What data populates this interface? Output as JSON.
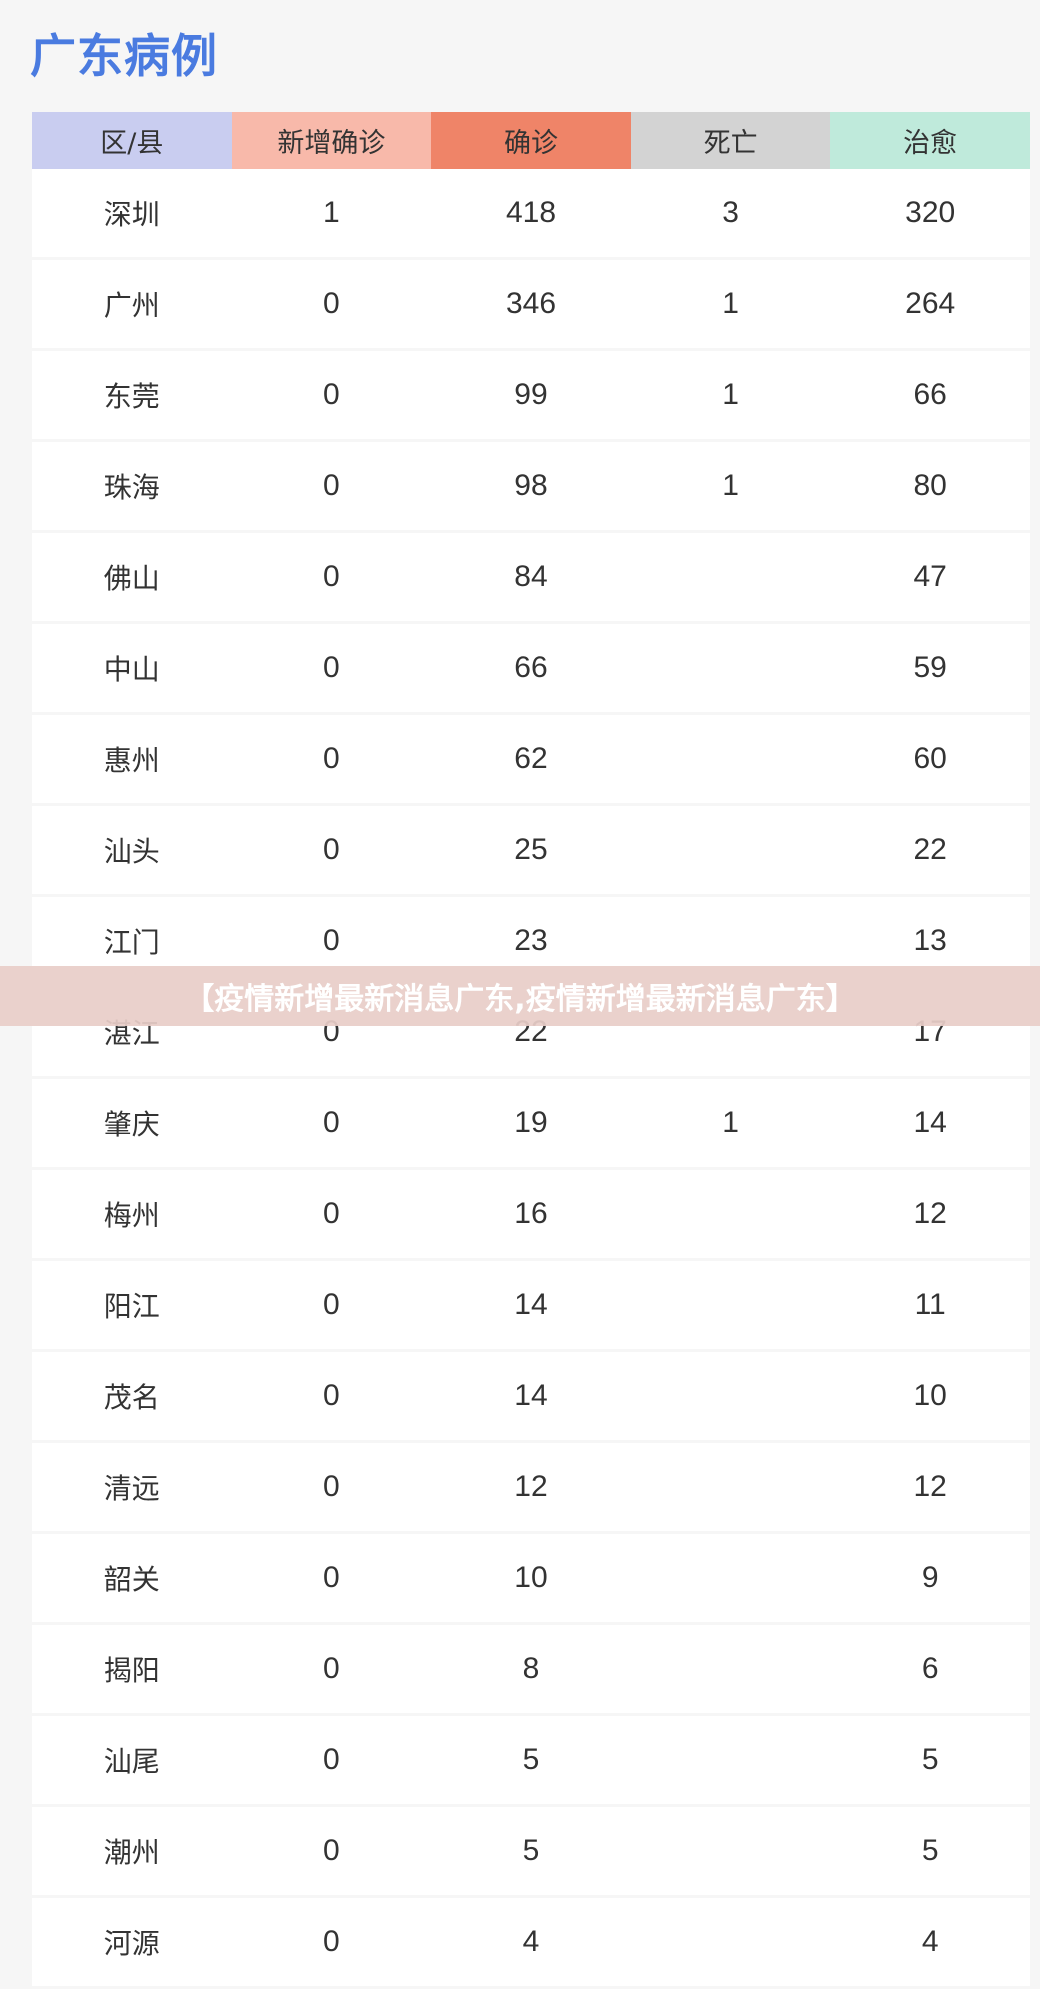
{
  "title": "广东病例",
  "colors": {
    "title": "#4a7be0",
    "col_region": "#c9cdf0",
    "col_new": "#f8b9aa",
    "col_confirmed": "#ef8468",
    "col_deaths": "#d3d3d3",
    "col_cured": "#bfeadb"
  },
  "columns": [
    "区/县",
    "新增确诊",
    "确诊",
    "死亡",
    "治愈"
  ],
  "rows": [
    [
      "深圳",
      "1",
      "418",
      "3",
      "320"
    ],
    [
      "广州",
      "0",
      "346",
      "1",
      "264"
    ],
    [
      "东莞",
      "0",
      "99",
      "1",
      "66"
    ],
    [
      "珠海",
      "0",
      "98",
      "1",
      "80"
    ],
    [
      "佛山",
      "0",
      "84",
      "",
      "47"
    ],
    [
      "中山",
      "0",
      "66",
      "",
      "59"
    ],
    [
      "惠州",
      "0",
      "62",
      "",
      "60"
    ],
    [
      "汕头",
      "0",
      "25",
      "",
      "22"
    ],
    [
      "江门",
      "0",
      "23",
      "",
      "13"
    ],
    [
      "湛江",
      "0",
      "22",
      "",
      "17"
    ],
    [
      "肇庆",
      "0",
      "19",
      "1",
      "14"
    ],
    [
      "梅州",
      "0",
      "16",
      "",
      "12"
    ],
    [
      "阳江",
      "0",
      "14",
      "",
      "11"
    ],
    [
      "茂名",
      "0",
      "14",
      "",
      "10"
    ],
    [
      "清远",
      "0",
      "12",
      "",
      "12"
    ],
    [
      "韶关",
      "0",
      "10",
      "",
      "9"
    ],
    [
      "揭阳",
      "0",
      "8",
      "",
      "6"
    ],
    [
      "汕尾",
      "0",
      "5",
      "",
      "5"
    ],
    [
      "潮州",
      "0",
      "5",
      "",
      "5"
    ],
    [
      "河源",
      "0",
      "4",
      "",
      "4"
    ]
  ],
  "banner": "【疫情新增最新消息广东,疫情新增最新消息广东】"
}
